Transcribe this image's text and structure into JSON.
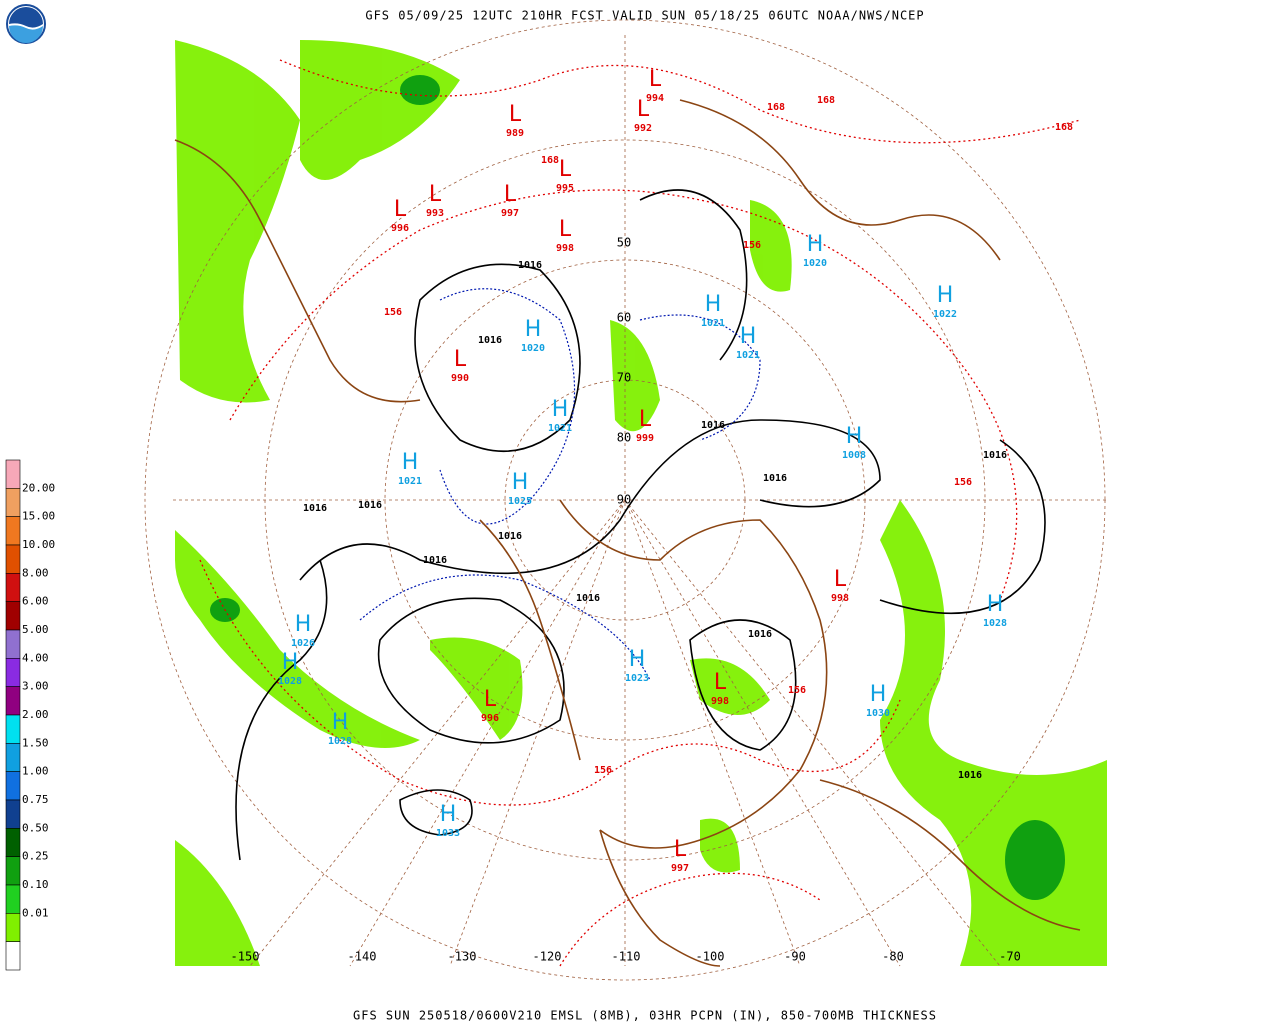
{
  "header": {
    "title": "GFS 05/09/25 12UTC 210HR FCST VALID SUN 05/18/25 06UTC NOAA/NWS/NCEP"
  },
  "footer": {
    "caption": "GFS SUN 250518/0600V210 EMSL (8MB), 03HR PCPN (IN), 850-700MB THICKNESS"
  },
  "legend": {
    "labels": [
      "20.00",
      "15.00",
      "10.00",
      "8.00",
      "6.00",
      "5.00",
      "4.00",
      "3.00",
      "2.00",
      "1.50",
      "1.00",
      "0.75",
      "0.50",
      "0.25",
      "0.10",
      "0.01"
    ],
    "colors": [
      "#f7a8b8",
      "#f0a060",
      "#f07820",
      "#e05000",
      "#d01010",
      "#a00000",
      "#9070d0",
      "#8a2be2",
      "#900080",
      "#00e0f0",
      "#10a0e0",
      "#1070e0",
      "#104090",
      "#006000",
      "#10a010",
      "#20d020",
      "#80f000",
      "#ffffff"
    ]
  },
  "map": {
    "lon_labels": [
      "-150",
      "-140",
      "-130",
      "-120",
      "-110",
      "-100",
      "-90",
      "-80",
      "-70"
    ],
    "lat_labels": [
      "90",
      "80",
      "70",
      "60",
      "50"
    ],
    "centers": [
      {
        "symbol": "L",
        "value": "994"
      },
      {
        "symbol": "L",
        "value": "992"
      },
      {
        "symbol": "L",
        "value": "989"
      },
      {
        "symbol": "L",
        "value": "993"
      },
      {
        "symbol": "L",
        "value": "997"
      },
      {
        "symbol": "L",
        "value": "995"
      },
      {
        "symbol": "L",
        "value": "998"
      },
      {
        "symbol": "L",
        "value": "996"
      },
      {
        "symbol": "H",
        "value": "1020"
      },
      {
        "symbol": "H",
        "value": "1022"
      },
      {
        "symbol": "H",
        "value": "1021"
      },
      {
        "symbol": "H",
        "value": "1021"
      },
      {
        "symbol": "H",
        "value": "1020"
      },
      {
        "symbol": "H",
        "value": "1021"
      },
      {
        "symbol": "H",
        "value": "1025"
      },
      {
        "symbol": "H",
        "value": "1021"
      },
      {
        "symbol": "H",
        "value": "1008"
      },
      {
        "symbol": "L",
        "value": "998"
      },
      {
        "symbol": "H",
        "value": "1028"
      },
      {
        "symbol": "H",
        "value": "1026"
      },
      {
        "symbol": "H",
        "value": "1028"
      },
      {
        "symbol": "H",
        "value": "1028"
      },
      {
        "symbol": "L",
        "value": "998"
      },
      {
        "symbol": "H",
        "value": "1023"
      },
      {
        "symbol": "L",
        "value": "996"
      },
      {
        "symbol": "H",
        "value": "1033"
      },
      {
        "symbol": "H",
        "value": "1030"
      },
      {
        "symbol": "L",
        "value": "997"
      },
      {
        "symbol": "L",
        "value": "990"
      },
      {
        "symbol": "L",
        "value": "999"
      }
    ],
    "isobar_labels": [
      "1016",
      "1016",
      "1016",
      "1016",
      "1016",
      "1016",
      "1016",
      "1016",
      "1016",
      "1016",
      "1016",
      "1016"
    ],
    "thickness_labels": [
      "156",
      "156",
      "156",
      "156",
      "156",
      "168",
      "168",
      "168",
      "168"
    ]
  }
}
